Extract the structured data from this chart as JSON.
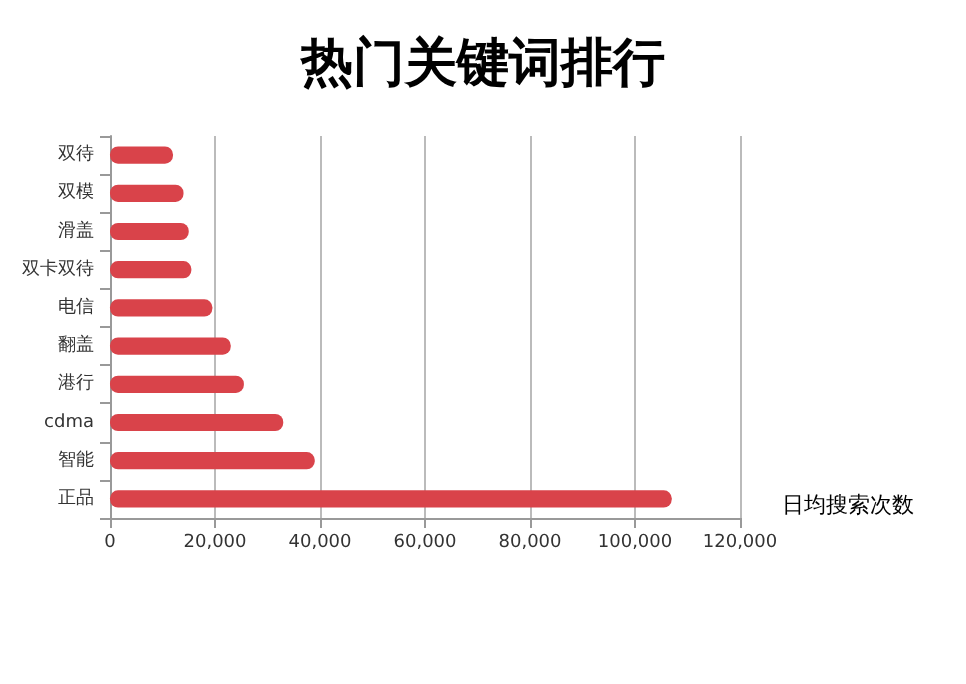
{
  "chart_data": {
    "type": "bar",
    "orientation": "horizontal",
    "title": "热门关键词排行",
    "xlabel": "日均搜索次数",
    "categories": [
      "双待",
      "双模",
      "滑盖",
      "双卡双待",
      "电信",
      "翻盖",
      "港行",
      "cdma",
      "智能",
      "正品"
    ],
    "values": [
      12000,
      14000,
      15000,
      15500,
      19500,
      23000,
      25500,
      33000,
      39000,
      107000
    ],
    "color": "#d9434a",
    "xlim": [
      0,
      120000
    ],
    "xticks": [
      {
        "value": 0,
        "label": "0"
      },
      {
        "value": 20000,
        "label": "20,000"
      },
      {
        "value": 40000,
        "label": "40,000"
      },
      {
        "value": 60000,
        "label": "60,000"
      },
      {
        "value": 80000,
        "label": "80,000"
      },
      {
        "value": 100000,
        "label": "100,000"
      },
      {
        "value": 120000,
        "label": "120,000"
      }
    ],
    "grid": "x"
  }
}
